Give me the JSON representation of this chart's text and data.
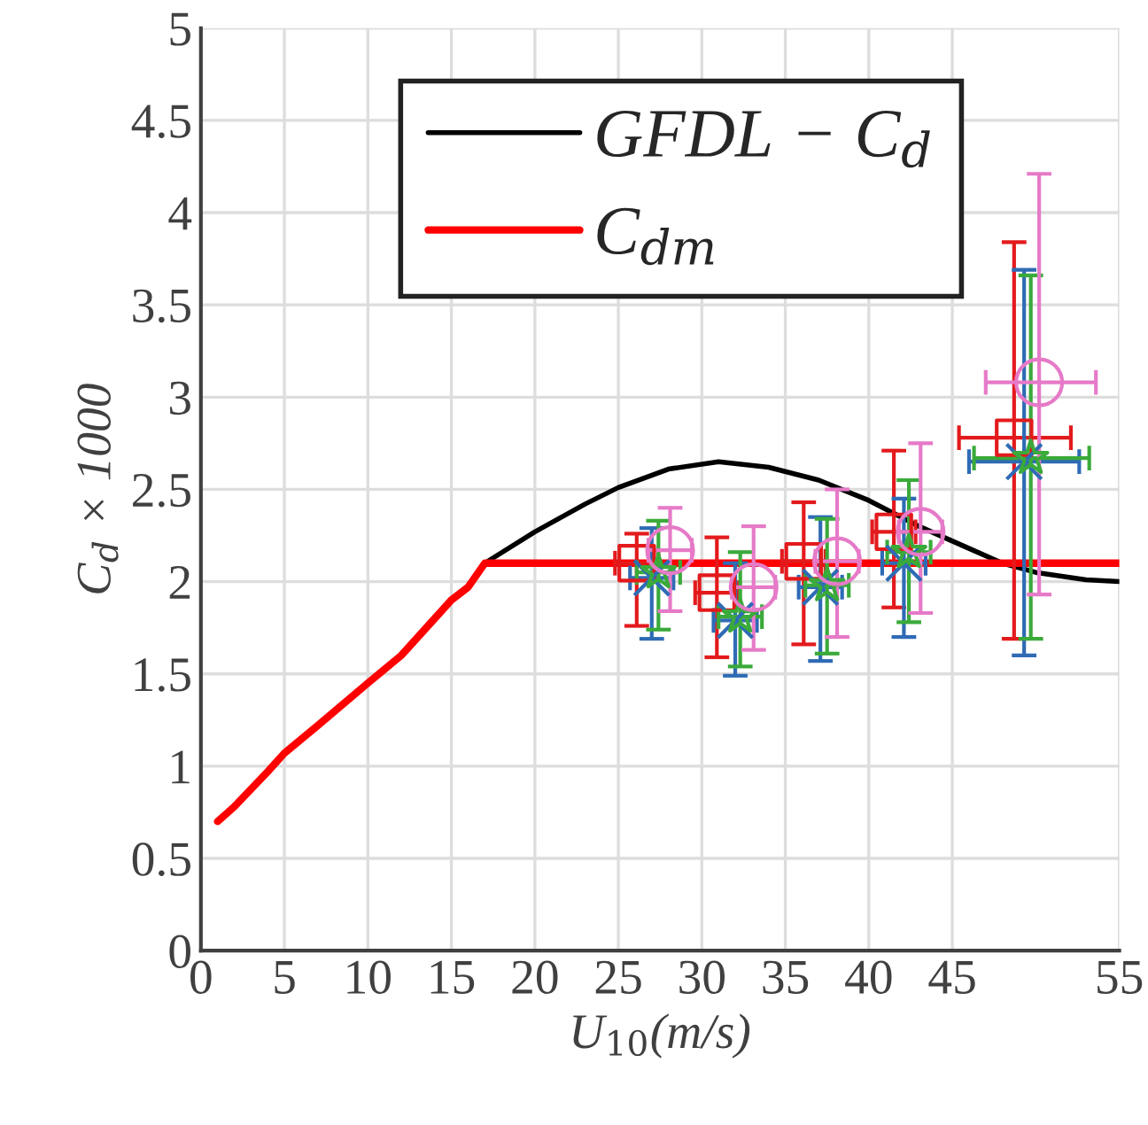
{
  "chart_data": {
    "type": "line",
    "xlabel": "U$_{10}$(m/s)",
    "ylabel": "C$_{d}$ × 1000",
    "xlim": [
      0,
      55
    ],
    "xticks": [
      0,
      5,
      10,
      15,
      20,
      25,
      30,
      35,
      40,
      45,
      55
    ],
    "ylim": [
      0,
      5
    ],
    "yticks": [
      0,
      0.5,
      1,
      1.5,
      2,
      2.5,
      3,
      3.5,
      4,
      4.5,
      5
    ],
    "grid": true,
    "legend": "top",
    "series": [
      {
        "name": "GFDL − C$_{d}$",
        "color": "#000000",
        "x": [
          17,
          20,
          23,
          25,
          28,
          31,
          34,
          37,
          40,
          43,
          46,
          48,
          50,
          53,
          55
        ],
        "values": [
          2.1,
          2.27,
          2.42,
          2.51,
          2.61,
          2.65,
          2.62,
          2.55,
          2.44,
          2.3,
          2.18,
          2.1,
          2.05,
          2.01,
          2.0
        ]
      },
      {
        "name": "C$_{dm}$",
        "color": "#ff0000",
        "x": [
          1,
          2,
          4,
          5,
          7,
          10,
          12,
          15,
          16,
          17,
          55
        ],
        "values": [
          0.7,
          0.78,
          0.97,
          1.07,
          1.22,
          1.45,
          1.6,
          1.9,
          1.97,
          2.1,
          2.1
        ]
      },
      {
        "type": "scatter",
        "marker": "square",
        "color": "#e31a1c",
        "x": [
          26.1,
          30.9,
          36.1,
          41.5,
          48.7
        ],
        "values": [
          2.1,
          1.94,
          2.11,
          2.27,
          2.78
        ],
        "errors": [
          [
            1.76,
            2.26
          ],
          [
            1.59,
            2.24
          ],
          [
            1.66,
            2.43
          ],
          [
            1.86,
            2.71
          ],
          [
            1.69,
            3.84
          ]
        ],
        "xerrors": [
          1.3,
          1.3,
          1.3,
          1.3,
          [
            45.4,
            52.1
          ]
        ]
      },
      {
        "type": "scatter",
        "marker": "cross",
        "color": "#2f6bb5",
        "x": [
          27.0,
          32.0,
          37.1,
          42.1,
          49.3
        ],
        "values": [
          2.02,
          1.79,
          1.97,
          2.1,
          2.65
        ],
        "errors": [
          [
            1.69,
            2.29
          ],
          [
            1.49,
            2.1
          ],
          [
            1.57,
            2.35
          ],
          [
            1.7,
            2.45
          ],
          [
            1.6,
            3.69
          ]
        ],
        "xerrors": [
          1.3,
          1.3,
          1.3,
          1.3,
          [
            46.0,
            52.6
          ]
        ]
      },
      {
        "type": "scatter",
        "marker": "star",
        "color": "#3aaa3a",
        "x": [
          27.4,
          32.3,
          37.5,
          42.4,
          49.7
        ],
        "values": [
          2.05,
          1.81,
          1.98,
          2.16,
          2.67
        ],
        "errors": [
          [
            1.74,
            2.33
          ],
          [
            1.54,
            2.16
          ],
          [
            1.61,
            2.34
          ],
          [
            1.78,
            2.55
          ],
          [
            1.69,
            3.66
          ]
        ],
        "xerrors": [
          1.3,
          1.3,
          1.3,
          1.3,
          [
            46.3,
            53.2
          ]
        ]
      },
      {
        "type": "scatter",
        "marker": "circle",
        "color": "#e67ac8",
        "x": [
          28.1,
          33.1,
          38.1,
          43.1,
          50.2
        ],
        "values": [
          2.17,
          1.97,
          2.11,
          2.27,
          3.08
        ],
        "errors": [
          [
            1.84,
            2.4
          ],
          [
            1.63,
            2.3
          ],
          [
            1.7,
            2.5
          ],
          [
            1.83,
            2.75
          ],
          [
            1.93,
            4.21
          ]
        ],
        "xerrors": [
          1.3,
          1.3,
          1.3,
          1.3,
          [
            47.0,
            53.6
          ]
        ]
      }
    ]
  }
}
